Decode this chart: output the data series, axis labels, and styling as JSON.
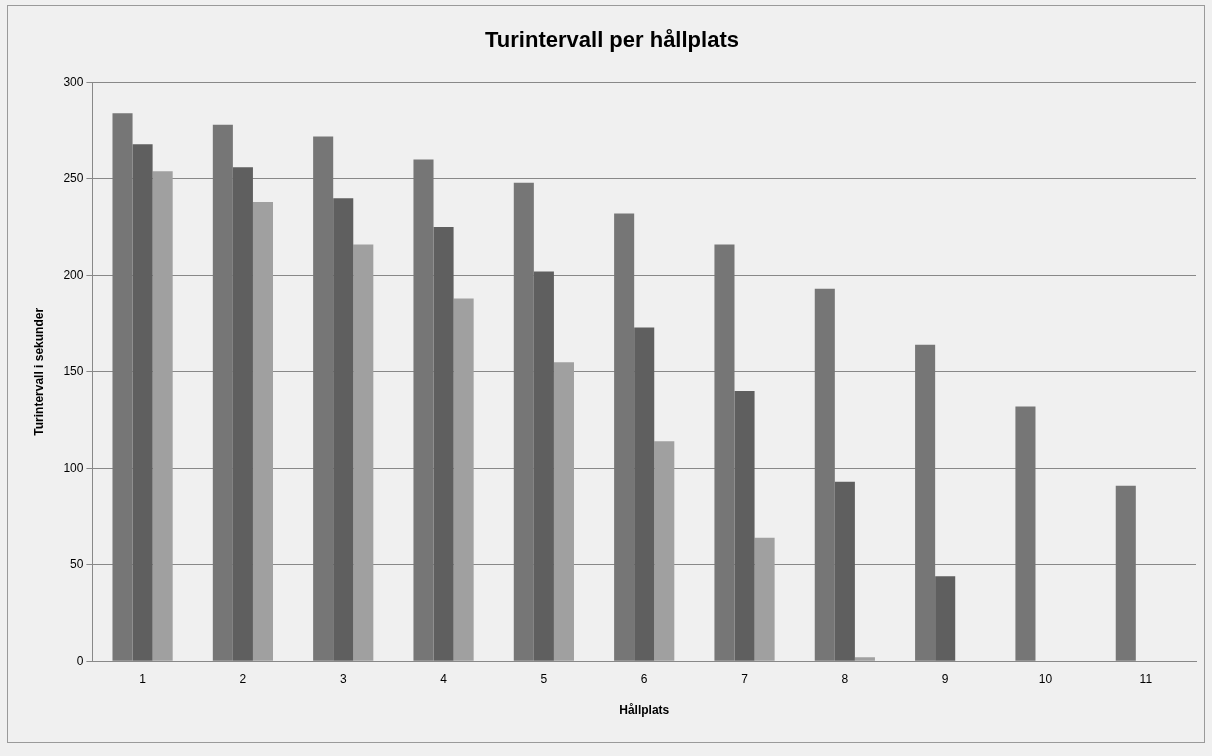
{
  "chart_data": {
    "type": "bar",
    "title": "Turintervall per hållplats",
    "xlabel": "Hållplats",
    "ylabel": "Turintervall i sekunder",
    "categories": [
      "1",
      "2",
      "3",
      "4",
      "5",
      "6",
      "7",
      "8",
      "9",
      "10",
      "11"
    ],
    "series": [
      {
        "color": "#767676",
        "values": [
          284,
          278,
          272,
          260,
          248,
          232,
          216,
          193,
          164,
          132,
          91
        ]
      },
      {
        "color": "#5f5f5f",
        "values": [
          268,
          256,
          240,
          225,
          202,
          173,
          140,
          93,
          44,
          0,
          0
        ]
      },
      {
        "color": "#a0a0a0",
        "values": [
          254,
          238,
          216,
          188,
          155,
          114,
          64,
          2,
          0,
          0,
          0
        ]
      }
    ],
    "ylim": [
      0,
      300
    ],
    "yticks": [
      0,
      50,
      100,
      150,
      200,
      250,
      300
    ],
    "grid": "y",
    "legend": false
  }
}
